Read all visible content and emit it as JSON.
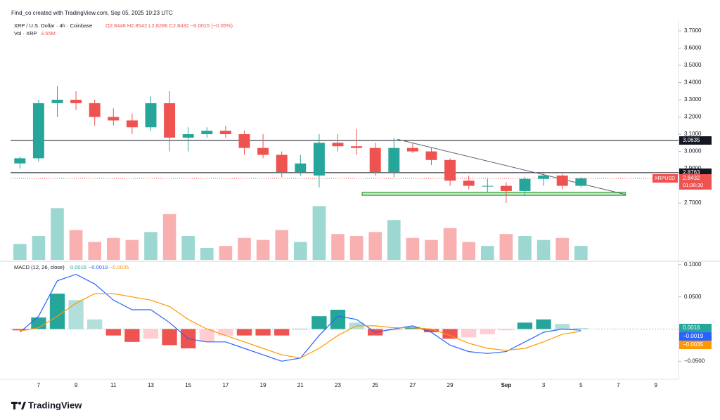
{
  "header": {
    "credit": "Find_co created with TradingView.com, Sep 05, 2025 10:23 UTC",
    "symbol": "XRP / U.S. Dollar · 4h · Coinbase",
    "ohlc": "O2.8448 H2.8542 L2.8286 C2.8432 −0.0015 (−0.05%)",
    "volume": "Vol · XRP",
    "volume_value": "3.55M"
  },
  "chart_data": [
    {
      "type": "candlestick",
      "categories": [
        null,
        "7",
        null,
        "9",
        null,
        "11",
        null,
        "13",
        null,
        "15",
        null,
        "17",
        null,
        "19",
        null,
        "21",
        null,
        "23",
        null,
        "25",
        null,
        "27",
        null,
        "29",
        null,
        null,
        "Sep",
        null,
        "3",
        null,
        "5",
        null,
        "7",
        null,
        "9"
      ],
      "open": [
        2.93,
        2.96,
        3.28,
        3.3,
        3.28,
        3.2,
        3.18,
        3.14,
        3.28,
        3.08,
        3.1,
        3.12,
        3.1,
        3.02,
        2.98,
        2.88,
        2.86,
        3.05,
        3.03,
        3.02,
        2.88,
        3.02,
        3.0,
        2.95,
        2.83,
        2.8,
        2.8,
        2.77,
        2.84,
        2.86,
        2.8,
        null,
        null,
        null,
        null
      ],
      "high": [
        2.97,
        3.3,
        3.38,
        3.35,
        3.3,
        3.25,
        3.22,
        3.32,
        3.35,
        3.14,
        3.14,
        3.15,
        3.12,
        3.1,
        3.0,
        2.98,
        3.1,
        3.1,
        3.13,
        3.05,
        3.08,
        3.05,
        3.02,
        2.96,
        2.86,
        2.84,
        2.82,
        2.85,
        2.88,
        2.87,
        2.85,
        null,
        null,
        null,
        null
      ],
      "low": [
        2.9,
        2.94,
        3.2,
        3.24,
        3.15,
        3.15,
        3.1,
        3.12,
        3.0,
        3.0,
        3.08,
        3.08,
        2.98,
        2.96,
        2.85,
        2.86,
        2.79,
        3.0,
        2.98,
        2.86,
        2.85,
        2.99,
        2.92,
        2.8,
        2.78,
        2.76,
        2.7,
        2.74,
        2.8,
        2.78,
        2.79,
        null,
        null,
        null,
        null
      ],
      "close": [
        2.96,
        3.28,
        3.3,
        3.28,
        3.2,
        3.18,
        3.14,
        3.28,
        3.08,
        3.1,
        3.12,
        3.1,
        3.02,
        2.98,
        2.88,
        2.93,
        3.05,
        3.03,
        3.02,
        2.88,
        3.02,
        3.0,
        2.95,
        2.83,
        2.8,
        2.8,
        2.77,
        2.84,
        2.86,
        2.8,
        2.8432,
        null,
        null,
        null,
        null
      ],
      "up_color": "#26a69a",
      "down_color": "#ef5350",
      "ylim": [
        2.37,
        3.757
      ],
      "yticks": [
        {
          "value": 2.7,
          "label": "2.7000"
        },
        {
          "value": 2.8,
          "label": "2.8000"
        },
        {
          "value": 2.9,
          "label": "2.9000"
        },
        {
          "value": 3.0,
          "label": "3.0000"
        },
        {
          "value": 3.1,
          "label": "3.1000"
        },
        {
          "value": 3.2,
          "label": "3.2000"
        },
        {
          "value": 3.3,
          "label": "3.3000"
        },
        {
          "value": 3.4,
          "label": "3.4000"
        },
        {
          "value": 3.5,
          "label": "3.5000"
        },
        {
          "value": 3.6,
          "label": "3.6000"
        },
        {
          "value": 3.7,
          "label": "3.7000"
        }
      ],
      "levels": [
        3.0635,
        2.8763
      ],
      "last_price": 2.8432,
      "symbol_label": "XRPUSD",
      "countdown": "01:36:30",
      "trendline": [
        3.07,
        2.75
      ],
      "support_zone": [
        2.745,
        2.762
      ],
      "volume": {
        "values": [
          80,
          120,
          260,
          150,
          90,
          110,
          100,
          140,
          230,
          120,
          60,
          70,
          110,
          100,
          150,
          90,
          270,
          130,
          120,
          140,
          200,
          110,
          100,
          160,
          90,
          70,
          130,
          120,
          100,
          110,
          70,
          null,
          null,
          null,
          null
        ],
        "ylim": [
          0,
          1200
        ]
      }
    },
    {
      "type": "macd",
      "title": "MACD (12, 26, close)",
      "legend_values": [
        "0.0016",
        "−0.0019",
        "−0.0035"
      ],
      "series": [
        {
          "color": "#2962ff",
          "values": [
            -0.005,
            0.02,
            0.075,
            0.085,
            0.07,
            0.045,
            0.03,
            0.03,
            0.01,
            -0.015,
            -0.02,
            -0.02,
            -0.03,
            -0.04,
            -0.05,
            -0.045,
            -0.01,
            0.02,
            0.015,
            -0.005,
            0.0,
            0.005,
            -0.005,
            -0.025,
            -0.035,
            -0.038,
            -0.035,
            -0.02,
            -0.005,
            0.0,
            -0.0019,
            null,
            null,
            null,
            null
          ]
        },
        {
          "color": "#ff9800",
          "values": [
            -0.003,
            0.002,
            0.02,
            0.04,
            0.055,
            0.055,
            0.05,
            0.045,
            0.035,
            0.015,
            0.0,
            -0.01,
            -0.02,
            -0.03,
            -0.04,
            -0.045,
            -0.03,
            -0.01,
            0.005,
            0.005,
            0.002,
            0.002,
            0.0,
            -0.01,
            -0.022,
            -0.03,
            -0.033,
            -0.03,
            -0.02,
            -0.008,
            -0.0035,
            null,
            null,
            null,
            null
          ]
        }
      ],
      "histogram": {
        "values": [
          -0.002,
          0.018,
          0.055,
          0.045,
          0.015,
          -0.01,
          -0.02,
          -0.015,
          -0.025,
          -0.03,
          -0.02,
          -0.01,
          -0.01,
          -0.01,
          -0.01,
          0.0,
          0.02,
          0.03,
          0.01,
          -0.01,
          -0.002,
          0.003,
          -0.005,
          -0.015,
          -0.013,
          -0.008,
          -0.002,
          0.01,
          0.015,
          0.008,
          0.0016,
          null,
          null,
          null,
          null
        ]
      },
      "ylim": [
        -0.078,
        0.102
      ],
      "yticks": [
        {
          "value": 0.1,
          "label": "0.1000"
        },
        {
          "value": 0.05,
          "label": "0.0500"
        },
        {
          "value": -0.05,
          "label": "−0.0500"
        }
      ]
    }
  ],
  "footer": {
    "logo": "TradingView"
  }
}
